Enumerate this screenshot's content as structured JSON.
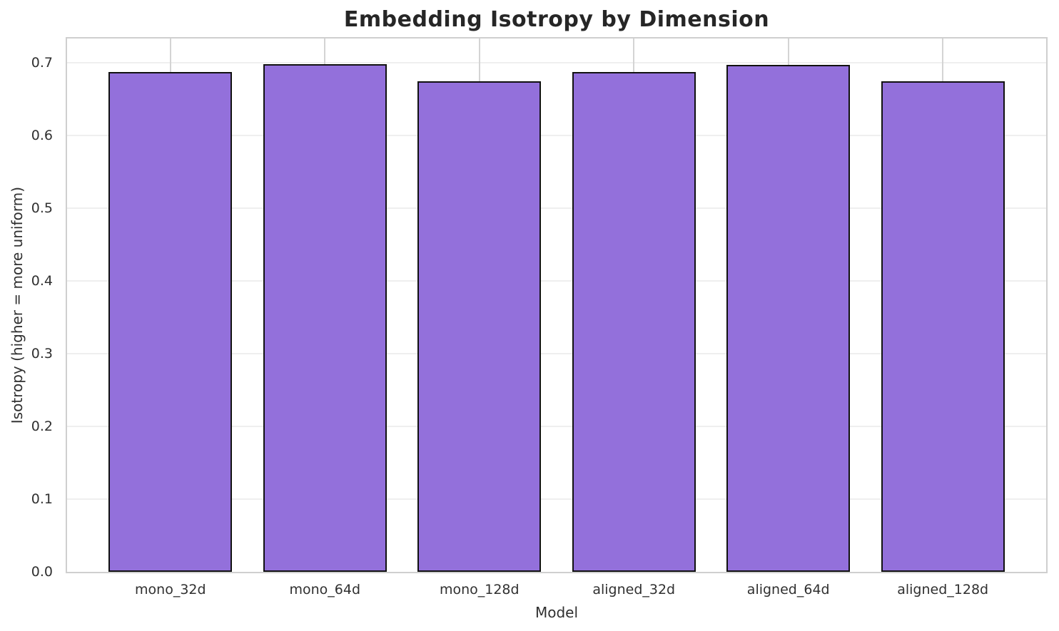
{
  "chart_data": {
    "type": "bar",
    "title": "Embedding Isotropy by Dimension",
    "xlabel": "Model",
    "ylabel": "Isotropy (higher = more uniform)",
    "categories": [
      "mono_32d",
      "mono_64d",
      "mono_128d",
      "aligned_32d",
      "aligned_64d",
      "aligned_128d"
    ],
    "values": [
      0.687,
      0.698,
      0.674,
      0.687,
      0.697,
      0.674
    ],
    "ylim": [
      0,
      0.733
    ],
    "yticks": [
      "0.0",
      "0.1",
      "0.2",
      "0.3",
      "0.4",
      "0.5",
      "0.6",
      "0.7"
    ],
    "grid": "on",
    "legend": "none",
    "colors": {
      "bar_fill": "#9370DB",
      "bar_edge": "#111111",
      "grid_horizontal": "#efefef",
      "grid_vertical": "#d4d4d4",
      "spine": "#cfcfcf",
      "title_text": "#262626",
      "tick_text": "#303030"
    }
  }
}
